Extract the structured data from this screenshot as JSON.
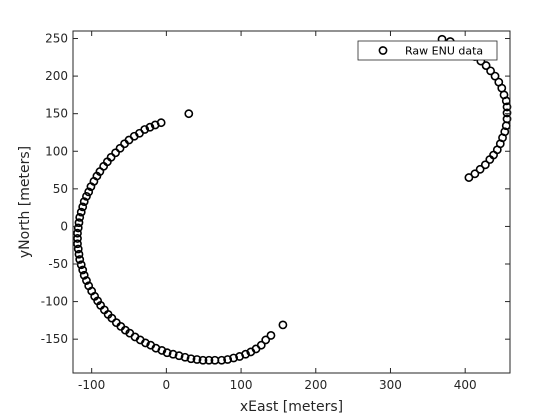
{
  "chart_data": {
    "type": "scatter",
    "xlabel": "xEast [meters]",
    "ylabel": "yNorth [meters]",
    "xlim": [
      -125,
      460
    ],
    "ylim": [
      -195,
      260
    ],
    "xticks": [
      -100,
      0,
      100,
      200,
      300,
      400
    ],
    "yticks": [
      -150,
      -100,
      -50,
      0,
      50,
      100,
      150,
      200,
      250
    ],
    "xtick_labels": [
      "-100",
      "0",
      "100",
      "200",
      "300",
      "400"
    ],
    "ytick_labels": [
      "-150",
      "-100",
      "-50",
      "0",
      "50",
      "100",
      "150",
      "200",
      "250"
    ],
    "grid": false,
    "legend_position": "top-right",
    "marker": "circle-open",
    "colors": {
      "marker": "#000000",
      "axes": "#262626"
    },
    "series": [
      {
        "name": "Raw ENU data",
        "points": [
          [
            -7,
            138
          ],
          [
            -15,
            135
          ],
          [
            -22,
            132
          ],
          [
            -29,
            129
          ],
          [
            -36,
            124
          ],
          [
            -43,
            120
          ],
          [
            -50,
            115
          ],
          [
            -56,
            110
          ],
          [
            -62,
            104
          ],
          [
            -68,
            98
          ],
          [
            -74,
            92
          ],
          [
            -79,
            86
          ],
          [
            -84,
            80
          ],
          [
            -89,
            73
          ],
          [
            -93,
            67
          ],
          [
            -97,
            60
          ],
          [
            -101,
            53
          ],
          [
            -104,
            46
          ],
          [
            -107,
            40
          ],
          [
            -110,
            33
          ],
          [
            -112,
            26
          ],
          [
            -114,
            19
          ],
          [
            -116,
            12
          ],
          [
            -117,
            5
          ],
          [
            -118,
            -2
          ],
          [
            -119,
            -9
          ],
          [
            -119,
            -16
          ],
          [
            -119,
            -23
          ],
          [
            -118,
            -30
          ],
          [
            -117,
            -37
          ],
          [
            -116,
            -44
          ],
          [
            -114,
            -51
          ],
          [
            -112,
            -58
          ],
          [
            -110,
            -65
          ],
          [
            -107,
            -72
          ],
          [
            -104,
            -79
          ],
          [
            -100,
            -86
          ],
          [
            -96,
            -93
          ],
          [
            -92,
            -99
          ],
          [
            -88,
            -105
          ],
          [
            -83,
            -111
          ],
          [
            -78,
            -117
          ],
          [
            -73,
            -122
          ],
          [
            -67,
            -128
          ],
          [
            -61,
            -133
          ],
          [
            -55,
            -138
          ],
          [
            -49,
            -142
          ],
          [
            -42,
            -147
          ],
          [
            -35,
            -151
          ],
          [
            -28,
            -155
          ],
          [
            -21,
            -158
          ],
          [
            -14,
            -162
          ],
          [
            -6,
            -165
          ],
          [
            1,
            -168
          ],
          [
            9,
            -170
          ],
          [
            17,
            -172
          ],
          [
            25,
            -174
          ],
          [
            33,
            -176
          ],
          [
            41,
            -177
          ],
          [
            49,
            -178
          ],
          [
            57,
            -178
          ],
          [
            65,
            -178
          ],
          [
            74,
            -178
          ],
          [
            82,
            -177
          ],
          [
            90,
            -175
          ],
          [
            98,
            -173
          ],
          [
            106,
            -170
          ],
          [
            113,
            -167
          ],
          [
            120,
            -163
          ],
          [
            127,
            -158
          ],
          [
            133,
            -151
          ],
          [
            140,
            -145
          ],
          [
            156,
            -131
          ],
          [
            30,
            150
          ],
          [
            405,
            65
          ],
          [
            413,
            70
          ],
          [
            420,
            76
          ],
          [
            427,
            82
          ],
          [
            433,
            89
          ],
          [
            438,
            95
          ],
          [
            443,
            102
          ],
          [
            447,
            110
          ],
          [
            450,
            118
          ],
          [
            453,
            126
          ],
          [
            455,
            134
          ],
          [
            456,
            143
          ],
          [
            456,
            151
          ],
          [
            456,
            159
          ],
          [
            455,
            167
          ],
          [
            452,
            175
          ],
          [
            449,
            184
          ],
          [
            445,
            192
          ],
          [
            440,
            200
          ],
          [
            434,
            207
          ],
          [
            428,
            214
          ],
          [
            421,
            220
          ],
          [
            413,
            226
          ],
          [
            395,
            240
          ],
          [
            380,
            246
          ],
          [
            369,
            249
          ]
        ]
      }
    ]
  }
}
